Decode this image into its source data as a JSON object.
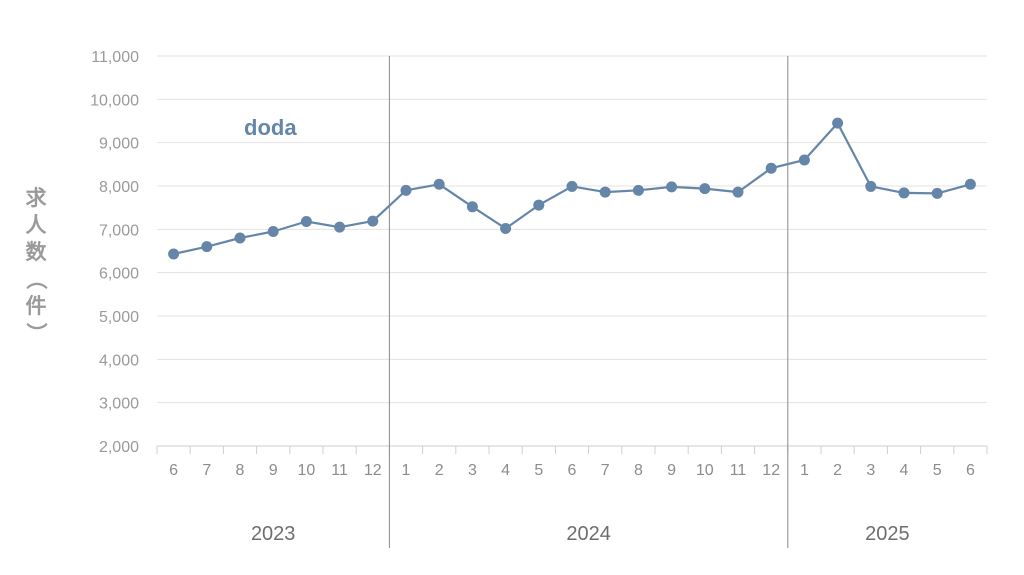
{
  "chart_data": {
    "type": "line",
    "ylabel": "求人数（件）",
    "ylim": [
      2000,
      11000
    ],
    "yticks": [
      "2,000",
      "3,000",
      "4,000",
      "5,000",
      "6,000",
      "7,000",
      "8,000",
      "9,000",
      "10,000",
      "11,000"
    ],
    "months": [
      "6",
      "7",
      "8",
      "9",
      "10",
      "11",
      "12",
      "1",
      "2",
      "3",
      "4",
      "5",
      "6",
      "7",
      "8",
      "9",
      "10",
      "11",
      "12",
      "1",
      "2",
      "3",
      "4",
      "5",
      "6"
    ],
    "years": [
      {
        "label": "2023",
        "start": 0,
        "end": 6
      },
      {
        "label": "2024",
        "start": 7,
        "end": 18
      },
      {
        "label": "2025",
        "start": 19,
        "end": 24
      }
    ],
    "series": [
      {
        "name": "doda",
        "color": "#6586a8",
        "values": [
          6430,
          6600,
          6800,
          6950,
          7180,
          7050,
          7190,
          7900,
          8040,
          7520,
          7020,
          7560,
          7990,
          7860,
          7900,
          7980,
          7940,
          7860,
          8410,
          8600,
          9450,
          7990,
          7840,
          7830,
          8040
        ]
      }
    ],
    "grid": true
  }
}
